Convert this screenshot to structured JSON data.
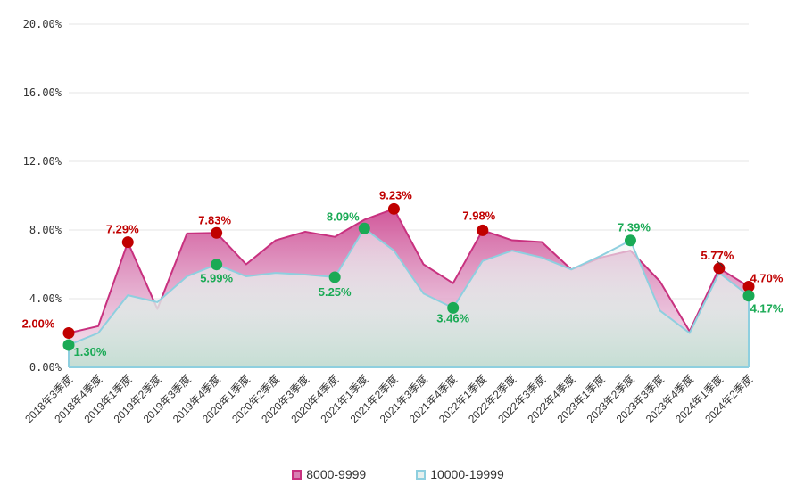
{
  "chart_data": {
    "type": "area",
    "title": "",
    "xlabel": "",
    "ylabel": "",
    "ylim": [
      0,
      20
    ],
    "yticks": [
      "0.00%",
      "4.00%",
      "8.00%",
      "12.00%",
      "16.00%",
      "20.00%"
    ],
    "categories": [
      "2018年3季度",
      "2018年4季度",
      "2019年1季度",
      "2019年2季度",
      "2019年3季度",
      "2019年4季度",
      "2020年1季度",
      "2020年2季度",
      "2020年3季度",
      "2020年4季度",
      "2021年1季度",
      "2021年2季度",
      "2021年3季度",
      "2021年4季度",
      "2022年1季度",
      "2022年2季度",
      "2022年3季度",
      "2022年4季度",
      "2023年1季度",
      "2023年2季度",
      "2023年3季度",
      "2023年4季度",
      "2024年1季度",
      "2024年2季度"
    ],
    "series": [
      {
        "name": "8000-9999",
        "color": "#c8317f",
        "marker_color": "#c00000",
        "values": [
          2.0,
          2.4,
          7.29,
          3.4,
          7.8,
          7.83,
          6.0,
          7.4,
          7.9,
          7.6,
          8.6,
          9.23,
          6.0,
          4.9,
          7.98,
          7.4,
          7.3,
          5.7,
          6.4,
          6.8,
          5.0,
          2.1,
          5.77,
          4.7
        ],
        "labels": [
          {
            "index": 0,
            "text": "2.00%"
          },
          {
            "index": 2,
            "text": "7.29%"
          },
          {
            "index": 5,
            "text": "7.83%"
          },
          {
            "index": 11,
            "text": "9.23%"
          },
          {
            "index": 14,
            "text": "7.98%"
          },
          {
            "index": 22,
            "text": "5.77%"
          },
          {
            "index": 23,
            "text": "4.70%"
          }
        ]
      },
      {
        "name": "10000-19999",
        "color": "#8ecfdf",
        "marker_color": "#1aaa55",
        "values": [
          1.3,
          2.0,
          4.2,
          3.8,
          5.3,
          5.99,
          5.3,
          5.5,
          5.4,
          5.25,
          8.09,
          6.8,
          4.3,
          3.46,
          6.2,
          6.8,
          6.4,
          5.7,
          6.5,
          7.39,
          3.3,
          2.0,
          5.5,
          4.17
        ],
        "labels": [
          {
            "index": 0,
            "text": "1.30%"
          },
          {
            "index": 5,
            "text": "5.99%"
          },
          {
            "index": 9,
            "text": "5.25%"
          },
          {
            "index": 10,
            "text": "8.09%"
          },
          {
            "index": 13,
            "text": "3.46%"
          },
          {
            "index": 19,
            "text": "7.39%"
          },
          {
            "index": 23,
            "text": "4.17%"
          }
        ]
      }
    ],
    "legend_position": "bottom-center",
    "grid": true
  }
}
